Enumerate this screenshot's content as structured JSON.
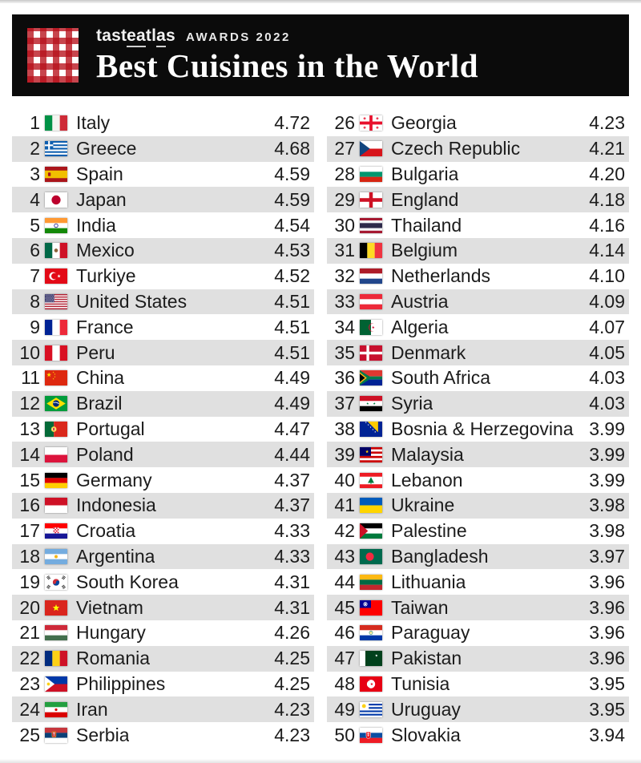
{
  "header": {
    "brand": {
      "pre": "tast",
      "u1": "ea",
      "mid": "tl",
      "u2": "a",
      "end": "s"
    },
    "awards_label": "AWARDS 2022",
    "title": "Best Cuisines in the World"
  },
  "colors": {
    "header_bg": "#0b0b0b",
    "logo_red": "#b7111b",
    "row_alt": "#e0e0e0",
    "text": "#1c1c1c"
  },
  "rankings": [
    {
      "rank": 1,
      "country": "Italy",
      "score": "4.72",
      "flag": "it"
    },
    {
      "rank": 2,
      "country": "Greece",
      "score": "4.68",
      "flag": "gr"
    },
    {
      "rank": 3,
      "country": "Spain",
      "score": "4.59",
      "flag": "es"
    },
    {
      "rank": 4,
      "country": "Japan",
      "score": "4.59",
      "flag": "jp"
    },
    {
      "rank": 5,
      "country": "India",
      "score": "4.54",
      "flag": "in"
    },
    {
      "rank": 6,
      "country": "Mexico",
      "score": "4.53",
      "flag": "mx"
    },
    {
      "rank": 7,
      "country": "Turkiye",
      "score": "4.52",
      "flag": "tr"
    },
    {
      "rank": 8,
      "country": "United States",
      "score": "4.51",
      "flag": "us"
    },
    {
      "rank": 9,
      "country": "France",
      "score": "4.51",
      "flag": "fr"
    },
    {
      "rank": 10,
      "country": "Peru",
      "score": "4.51",
      "flag": "pe"
    },
    {
      "rank": 11,
      "country": "China",
      "score": "4.49",
      "flag": "cn"
    },
    {
      "rank": 12,
      "country": "Brazil",
      "score": "4.49",
      "flag": "br"
    },
    {
      "rank": 13,
      "country": "Portugal",
      "score": "4.47",
      "flag": "pt"
    },
    {
      "rank": 14,
      "country": "Poland",
      "score": "4.44",
      "flag": "pl"
    },
    {
      "rank": 15,
      "country": "Germany",
      "score": "4.37",
      "flag": "de"
    },
    {
      "rank": 16,
      "country": "Indonesia",
      "score": "4.37",
      "flag": "id"
    },
    {
      "rank": 17,
      "country": "Croatia",
      "score": "4.33",
      "flag": "hr"
    },
    {
      "rank": 18,
      "country": "Argentina",
      "score": "4.33",
      "flag": "ar"
    },
    {
      "rank": 19,
      "country": "South Korea",
      "score": "4.31",
      "flag": "kr"
    },
    {
      "rank": 20,
      "country": "Vietnam",
      "score": "4.31",
      "flag": "vn"
    },
    {
      "rank": 21,
      "country": "Hungary",
      "score": "4.26",
      "flag": "hu"
    },
    {
      "rank": 22,
      "country": "Romania",
      "score": "4.25",
      "flag": "ro"
    },
    {
      "rank": 23,
      "country": "Philippines",
      "score": "4.25",
      "flag": "ph"
    },
    {
      "rank": 24,
      "country": "Iran",
      "score": "4.23",
      "flag": "ir"
    },
    {
      "rank": 25,
      "country": "Serbia",
      "score": "4.23",
      "flag": "rs"
    },
    {
      "rank": 26,
      "country": "Georgia",
      "score": "4.23",
      "flag": "ge"
    },
    {
      "rank": 27,
      "country": "Czech Republic",
      "score": "4.21",
      "flag": "cz"
    },
    {
      "rank": 28,
      "country": "Bulgaria",
      "score": "4.20",
      "flag": "bg"
    },
    {
      "rank": 29,
      "country": "England",
      "score": "4.18",
      "flag": "en"
    },
    {
      "rank": 30,
      "country": "Thailand",
      "score": "4.16",
      "flag": "th"
    },
    {
      "rank": 31,
      "country": "Belgium",
      "score": "4.14",
      "flag": "be"
    },
    {
      "rank": 32,
      "country": "Netherlands",
      "score": "4.10",
      "flag": "nl"
    },
    {
      "rank": 33,
      "country": "Austria",
      "score": "4.09",
      "flag": "at"
    },
    {
      "rank": 34,
      "country": "Algeria",
      "score": "4.07",
      "flag": "dz"
    },
    {
      "rank": 35,
      "country": "Denmark",
      "score": "4.05",
      "flag": "dk"
    },
    {
      "rank": 36,
      "country": "South Africa",
      "score": "4.03",
      "flag": "za"
    },
    {
      "rank": 37,
      "country": "Syria",
      "score": "4.03",
      "flag": "sy"
    },
    {
      "rank": 38,
      "country": "Bosnia & Herzegovina",
      "score": "3.99",
      "flag": "ba"
    },
    {
      "rank": 39,
      "country": "Malaysia",
      "score": "3.99",
      "flag": "my"
    },
    {
      "rank": 40,
      "country": "Lebanon",
      "score": "3.99",
      "flag": "lb"
    },
    {
      "rank": 41,
      "country": "Ukraine",
      "score": "3.98",
      "flag": "ua"
    },
    {
      "rank": 42,
      "country": "Palestine",
      "score": "3.98",
      "flag": "ps"
    },
    {
      "rank": 43,
      "country": "Bangladesh",
      "score": "3.97",
      "flag": "bd"
    },
    {
      "rank": 44,
      "country": "Lithuania",
      "score": "3.96",
      "flag": "lt"
    },
    {
      "rank": 45,
      "country": "Taiwan",
      "score": "3.96",
      "flag": "tw"
    },
    {
      "rank": 46,
      "country": "Paraguay",
      "score": "3.96",
      "flag": "py"
    },
    {
      "rank": 47,
      "country": "Pakistan",
      "score": "3.96",
      "flag": "pk"
    },
    {
      "rank": 48,
      "country": "Tunisia",
      "score": "3.95",
      "flag": "tn"
    },
    {
      "rank": 49,
      "country": "Uruguay",
      "score": "3.95",
      "flag": "uy"
    },
    {
      "rank": 50,
      "country": "Slovakia",
      "score": "3.94",
      "flag": "sk"
    }
  ]
}
